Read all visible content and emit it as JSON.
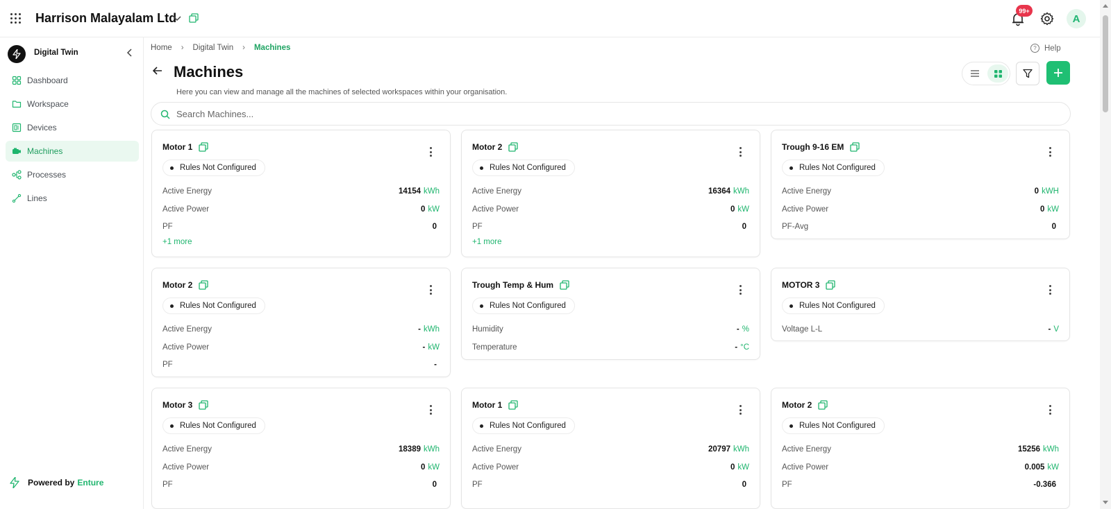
{
  "topbar": {
    "org_name": "Harrison Malayalam Ltd",
    "notification_badge": "99+",
    "avatar_initial": "A"
  },
  "sidebar": {
    "app_name": "Digital Twin",
    "items": [
      {
        "label": "Dashboard",
        "icon": "dashboard-icon",
        "active": false
      },
      {
        "label": "Workspace",
        "icon": "folder-icon",
        "active": false
      },
      {
        "label": "Devices",
        "icon": "devices-icon",
        "active": false
      },
      {
        "label": "Machines",
        "icon": "machine-icon",
        "active": true
      },
      {
        "label": "Processes",
        "icon": "processes-icon",
        "active": false
      },
      {
        "label": "Lines",
        "icon": "lines-icon",
        "active": false
      }
    ],
    "powered_by_label": "Powered by",
    "powered_by_brand": "Enture"
  },
  "breadcrumb": [
    "Home",
    "Digital Twin",
    "Machines"
  ],
  "help_label": "Help",
  "page": {
    "title": "Machines",
    "description": "Here you can view and manage all the machines of selected workspaces within your organisation."
  },
  "search": {
    "placeholder": "Search Machines..."
  },
  "colors": {
    "accent": "#1fbf73",
    "badge": "#e8354c",
    "active_bg": "#eaf8f0"
  },
  "cards": [
    {
      "name": "Motor 1",
      "status": "Rules Not Configured",
      "metrics": [
        [
          "Active Energy",
          "14154",
          "kWh"
        ],
        [
          "Active Power",
          "0",
          "kW"
        ],
        [
          "PF",
          "0",
          ""
        ]
      ],
      "more": "+1 more"
    },
    {
      "name": "Motor 2",
      "status": "Rules Not Configured",
      "metrics": [
        [
          "Active Energy",
          "16364",
          "kWh"
        ],
        [
          "Active Power",
          "0",
          "kW"
        ],
        [
          "PF",
          "0",
          ""
        ]
      ],
      "more": "+1 more"
    },
    {
      "name": "Trough 9-16 EM",
      "status": "Rules Not Configured",
      "metrics": [
        [
          "Active Energy",
          "0",
          "kWH"
        ],
        [
          "Active Power",
          "0",
          "kW"
        ],
        [
          "PF-Avg",
          "0",
          ""
        ]
      ],
      "more": ""
    },
    {
      "name": "Motor 2",
      "status": "Rules Not Configured",
      "metrics": [
        [
          "Active Energy",
          "-",
          "kWh"
        ],
        [
          "Active Power",
          "-",
          "kW"
        ],
        [
          "PF",
          "-",
          ""
        ]
      ],
      "more": ""
    },
    {
      "name": "Trough Temp & Hum",
      "status": "Rules Not Configured",
      "metrics": [
        [
          "Humidity",
          "-",
          "%"
        ],
        [
          "Temperature",
          "-",
          "°C"
        ]
      ],
      "more": ""
    },
    {
      "name": "MOTOR 3",
      "status": "Rules Not Configured",
      "metrics": [
        [
          "Voltage L-L",
          "-",
          "V"
        ]
      ],
      "more": ""
    },
    {
      "name": "Motor 3",
      "status": "Rules Not Configured",
      "metrics": [
        [
          "Active Energy",
          "18389",
          "kWh"
        ],
        [
          "Active Power",
          "0",
          "kW"
        ],
        [
          "PF",
          "0",
          ""
        ]
      ],
      "more": ""
    },
    {
      "name": "Motor 1",
      "status": "Rules Not Configured",
      "metrics": [
        [
          "Active Energy",
          "20797",
          "kWh"
        ],
        [
          "Active Power",
          "0",
          "kW"
        ],
        [
          "PF",
          "0",
          ""
        ]
      ],
      "more": ""
    },
    {
      "name": "Motor 2",
      "status": "Rules Not Configured",
      "metrics": [
        [
          "Active Energy",
          "15256",
          "kWh"
        ],
        [
          "Active Power",
          "0.005",
          "kW"
        ],
        [
          "PF",
          "-0.366",
          ""
        ]
      ],
      "more": ""
    }
  ]
}
